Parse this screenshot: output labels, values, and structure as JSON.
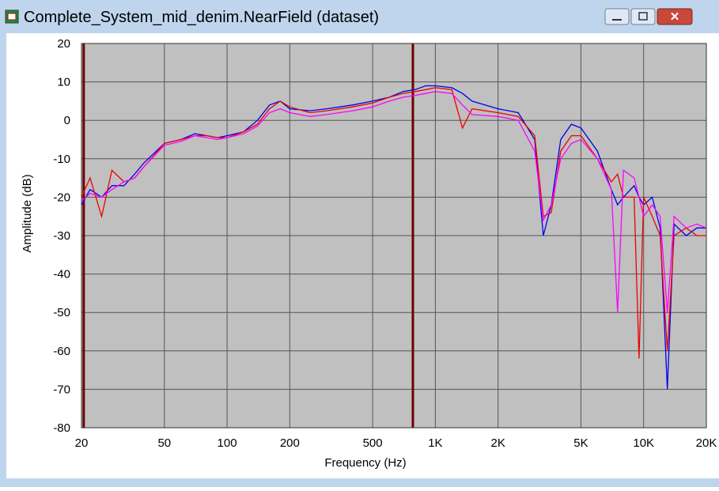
{
  "window": {
    "title": "Complete_System_mid_denim.NearField (dataset)"
  },
  "chart_data": {
    "type": "line",
    "xlabel": "Frequency (Hz)",
    "ylabel": "Amplitude (dB)",
    "xscale": "log",
    "grid": true,
    "background": "#c0c0c0",
    "xlim": [
      20,
      20000
    ],
    "ylim": [
      -80,
      20
    ],
    "xticks": [
      20,
      50,
      100,
      200,
      500,
      {
        "value": 1000,
        "label": "1K"
      },
      {
        "value": 2000,
        "label": "2K"
      },
      {
        "value": 5000,
        "label": "5K"
      },
      {
        "value": 10000,
        "label": "10K"
      },
      {
        "value": 20000,
        "label": "20K"
      }
    ],
    "yticks": [
      20,
      10,
      0,
      -10,
      -20,
      -30,
      -40,
      -50,
      -60,
      -70,
      -80
    ],
    "cursors": [
      20.5,
      780
    ],
    "cursor_color": "#6b0000",
    "x": [
      20,
      22,
      25,
      28,
      32,
      36,
      40,
      50,
      60,
      70,
      80,
      90,
      100,
      120,
      140,
      160,
      180,
      200,
      250,
      300,
      400,
      500,
      600,
      700,
      800,
      900,
      1000,
      1200,
      1350,
      1500,
      2000,
      2500,
      3000,
      3300,
      3600,
      4000,
      4500,
      5000,
      6000,
      7000,
      7500,
      8000,
      9000,
      9500,
      10000,
      11000,
      12000,
      13000,
      14000,
      16000,
      18000,
      20000
    ],
    "series": [
      {
        "color": "#0000ee",
        "values": [
          -22,
          -18,
          -20,
          -17,
          -17,
          -14,
          -11,
          -6,
          -5,
          -3.5,
          -4,
          -4.5,
          -4,
          -3,
          0,
          4,
          5,
          3,
          2.5,
          3,
          4,
          5,
          6,
          7.5,
          8,
          9,
          9,
          8.5,
          7,
          5,
          3,
          2,
          -5,
          -30,
          -22,
          -5,
          -1,
          -2,
          -8,
          -18,
          -22,
          -20,
          -17,
          -20,
          -22,
          -20,
          -28,
          -70,
          -27,
          -30,
          -28,
          -28
        ]
      },
      {
        "color": "#ee0000",
        "values": [
          -20,
          -15,
          -25,
          -13,
          -16,
          -15,
          -12,
          -6,
          -5,
          -4,
          -4,
          -4.5,
          -4.5,
          -3,
          -1,
          3,
          5,
          3.5,
          2,
          2.5,
          3.5,
          4.5,
          6,
          7,
          7.5,
          8,
          8.5,
          8,
          -2,
          3,
          2,
          1,
          -4,
          -25,
          -24,
          -8,
          -4,
          -4,
          -10,
          -16,
          -14,
          -20,
          -20,
          -62,
          -20,
          -25,
          -30,
          -60,
          -30,
          -28,
          -30,
          -30
        ]
      },
      {
        "color": "#ff00ff",
        "values": [
          -21,
          -19,
          -20,
          -18,
          -16,
          -15,
          -12,
          -6.5,
          -5.5,
          -4,
          -4.5,
          -5,
          -4.5,
          -3.5,
          -1.5,
          2,
          3,
          2,
          1,
          1.5,
          2.5,
          3.5,
          5,
          6,
          6.5,
          7,
          7.5,
          7,
          4,
          1.5,
          1,
          0,
          -8,
          -26,
          -22,
          -10,
          -6,
          -5,
          -10,
          -18,
          -50,
          -13,
          -15,
          -20,
          -25,
          -22,
          -25,
          -50,
          -25,
          -28,
          -27,
          -28
        ]
      }
    ]
  }
}
